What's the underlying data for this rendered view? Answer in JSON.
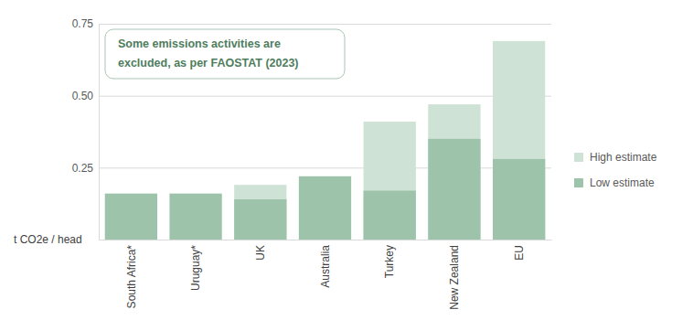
{
  "chart_data": {
    "type": "bar",
    "y_label": "t CO2e / head",
    "annotation": [
      "Some emissions activities are",
      "excluded, as per FAOSTAT (2023)"
    ],
    "categories": [
      "South Africa*",
      "Uruguay*",
      "UK",
      "Australia",
      "Turkey",
      "New Zealand",
      "EU"
    ],
    "series": [
      {
        "name": "High estimate",
        "color": "#cfe2d6",
        "values": [
          null,
          null,
          0.19,
          null,
          0.41,
          0.47,
          0.69
        ]
      },
      {
        "name": "Low estimate",
        "color": "#9dc3ab",
        "values": [
          0.16,
          0.16,
          0.14,
          0.22,
          0.17,
          0.35,
          0.28
        ]
      }
    ],
    "ylim": [
      0,
      0.75
    ],
    "yticks": [
      0.25,
      {
        "value": 0.5,
        "label": "0.50"
      },
      0.75
    ],
    "grid": true,
    "legend": "right"
  }
}
